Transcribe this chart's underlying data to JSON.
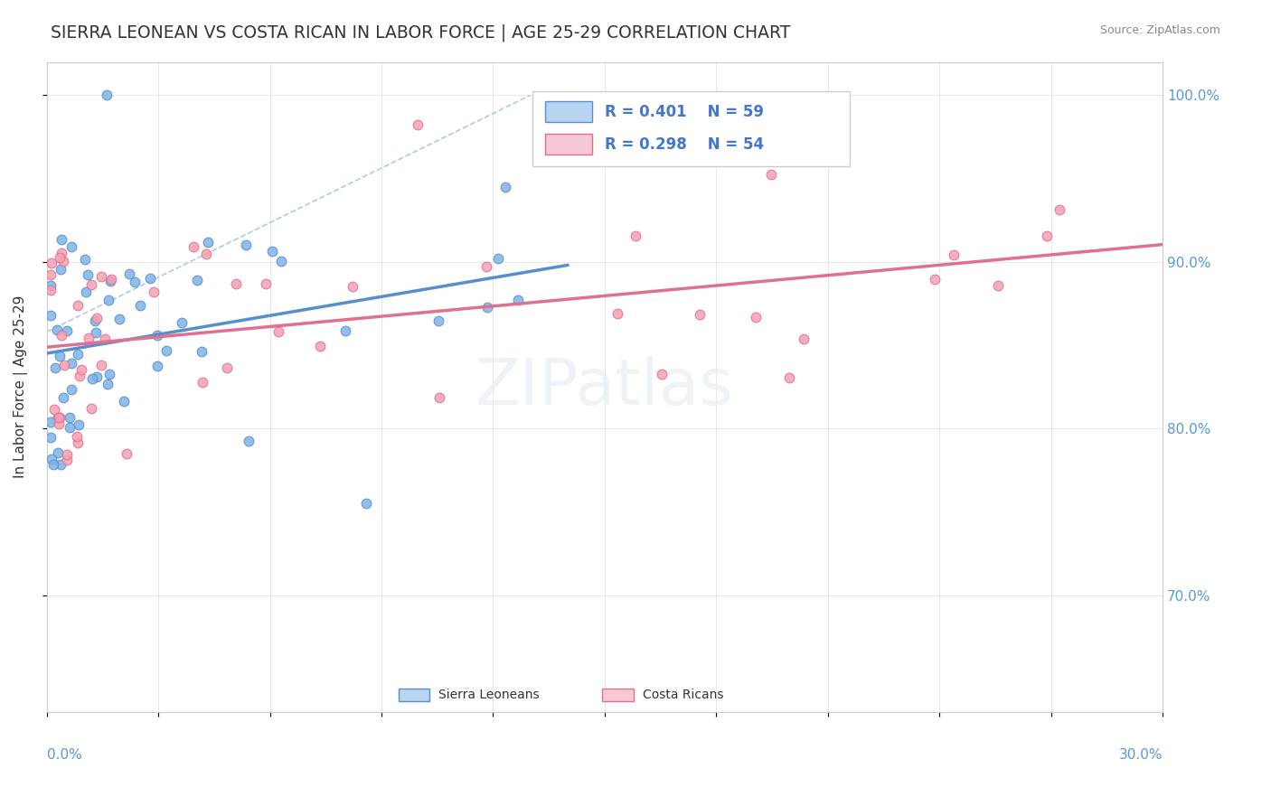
{
  "title": "SIERRA LEONEAN VS COSTA RICAN IN LABOR FORCE | AGE 25-29 CORRELATION CHART",
  "source": "Source: ZipAtlas.com",
  "ylabel": "In Labor Force | Age 25-29",
  "xlim": [
    0.0,
    0.3
  ],
  "ylim": [
    0.63,
    1.02
  ],
  "blue_R": 0.401,
  "blue_N": 59,
  "pink_R": 0.298,
  "pink_N": 54,
  "blue_color": "#7EB3E8",
  "pink_color": "#F4A0B0",
  "blue_edge": "#5590CC",
  "pink_edge": "#E07090",
  "legend_blue_fill": "#B8D4F0",
  "legend_pink_fill": "#F8C8D4",
  "right_y_ticks": [
    0.7,
    0.8,
    0.9,
    1.0
  ],
  "right_y_labels": [
    "70.0%",
    "80.0%",
    "90.0%",
    "100.0%"
  ]
}
